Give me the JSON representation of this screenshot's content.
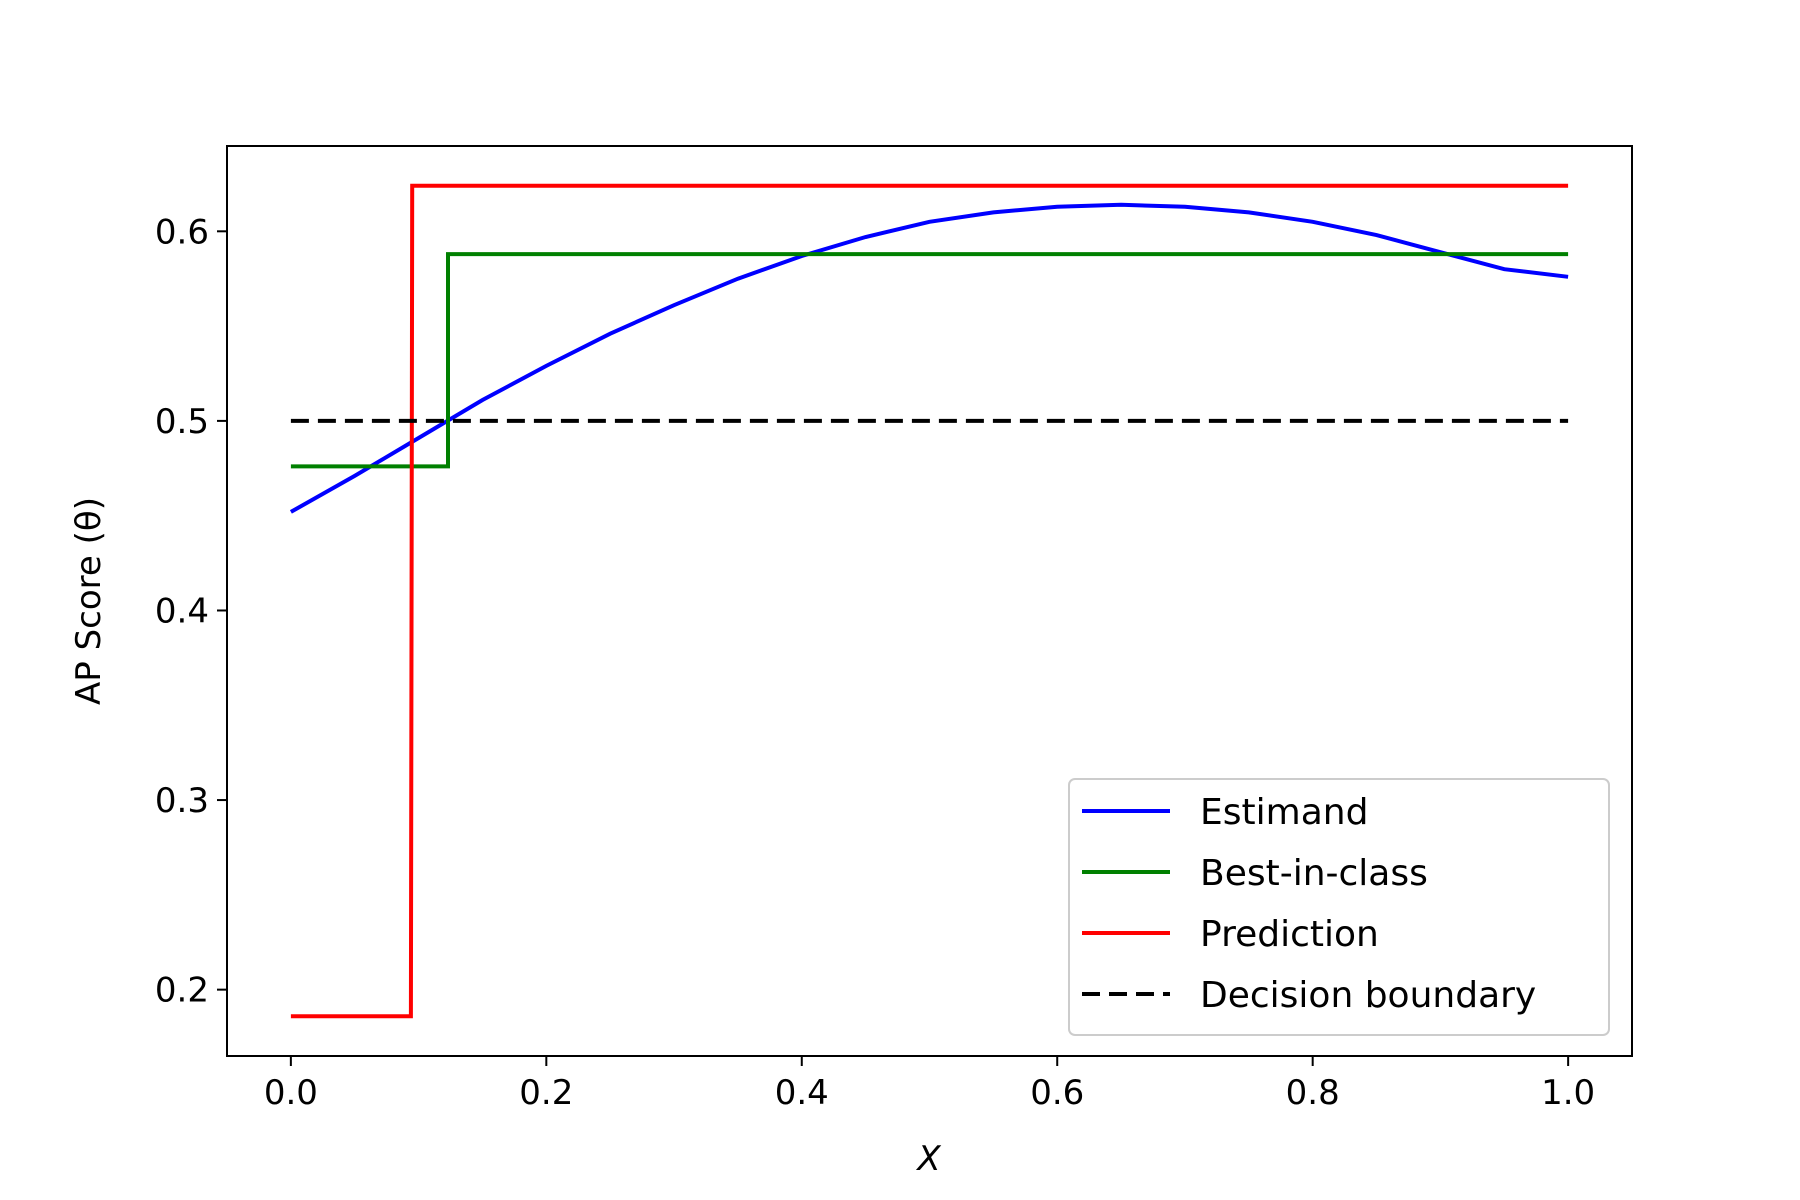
{
  "chart_data": {
    "type": "line",
    "title": "",
    "xlabel": "X",
    "ylabel": "AP Score (θ)",
    "xlim": [
      -0.05,
      1.05
    ],
    "ylim": [
      0.165,
      0.645
    ],
    "xticks": [
      0.0,
      0.2,
      0.4,
      0.6,
      0.8,
      1.0
    ],
    "xtick_labels": [
      "0.0",
      "0.2",
      "0.4",
      "0.6",
      "0.8",
      "1.0"
    ],
    "yticks": [
      0.2,
      0.3,
      0.4,
      0.5,
      0.6
    ],
    "ytick_labels": [
      "0.2",
      "0.3",
      "0.4",
      "0.5",
      "0.6"
    ],
    "grid": false,
    "legend_position": "lower-right",
    "series": [
      {
        "name": "Estimand",
        "color": "#0000ff",
        "style": "solid",
        "x": [
          0.0,
          0.05,
          0.1,
          0.15,
          0.2,
          0.25,
          0.3,
          0.35,
          0.4,
          0.45,
          0.5,
          0.55,
          0.6,
          0.65,
          0.7,
          0.75,
          0.8,
          0.85,
          0.9,
          0.95,
          1.0
        ],
        "y": [
          0.452,
          0.471,
          0.491,
          0.511,
          0.529,
          0.546,
          0.561,
          0.575,
          0.587,
          0.597,
          0.605,
          0.61,
          0.613,
          0.614,
          0.613,
          0.61,
          0.605,
          0.598,
          0.589,
          0.58,
          0.576
        ]
      },
      {
        "name": "Best-in-class",
        "color": "#008000",
        "style": "solid",
        "x": [
          0.0,
          0.123,
          0.123,
          1.0
        ],
        "y": [
          0.476,
          0.476,
          0.588,
          0.588
        ]
      },
      {
        "name": "Prediction",
        "color": "#ff0000",
        "style": "solid",
        "x": [
          0.0,
          0.094,
          0.095,
          1.0
        ],
        "y": [
          0.186,
          0.186,
          0.624,
          0.624
        ]
      },
      {
        "name": "Decision boundary",
        "color": "#000000",
        "style": "dashed",
        "x": [
          0.0,
          1.0
        ],
        "y": [
          0.5,
          0.5
        ]
      }
    ]
  }
}
